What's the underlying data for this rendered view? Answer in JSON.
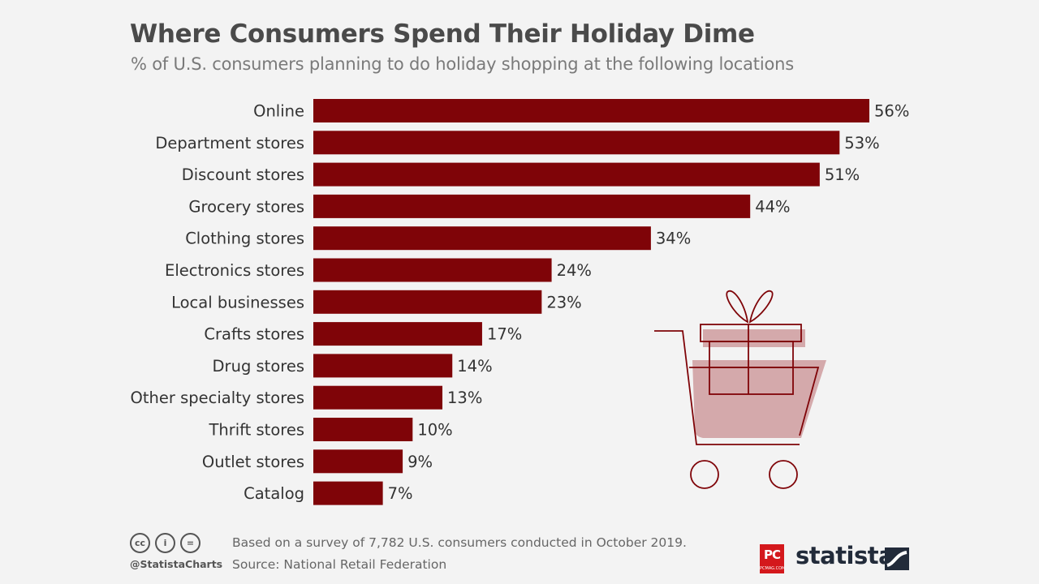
{
  "header": {
    "title": "Where Consumers Spend Their Holiday Dime",
    "subtitle": "% of U.S. consumers planning to do holiday shopping at the following locations"
  },
  "chart_data": {
    "type": "bar",
    "orientation": "horizontal",
    "title": "Where Consumers Spend Their Holiday Dime",
    "subtitle": "% of U.S. consumers planning to do holiday shopping at the following locations",
    "categories": [
      "Online",
      "Department stores",
      "Discount stores",
      "Grocery stores",
      "Clothing stores",
      "Electronics stores",
      "Local businesses",
      "Crafts stores",
      "Drug stores",
      "Other specialty stores",
      "Thrift stores",
      "Outlet stores",
      "Catalog"
    ],
    "values": [
      56,
      53,
      51,
      44,
      34,
      24,
      23,
      17,
      14,
      13,
      10,
      9,
      7
    ],
    "value_labels": [
      "56%",
      "53%",
      "51%",
      "44%",
      "34%",
      "24%",
      "23%",
      "17%",
      "14%",
      "13%",
      "10%",
      "9%",
      "7%"
    ],
    "unit": "%",
    "xlim": [
      0,
      56
    ],
    "grid": false,
    "legend": "none",
    "bar_color": "#7f0408"
  },
  "illustration": {
    "icon": "shopping-cart-with-gift-icon",
    "line_color": "#7f0408",
    "fill_color": "#d4a9ab"
  },
  "footer": {
    "note": "Based on a survey of 7,782 U.S. consumers conducted in October 2019.",
    "source": "Source: National Retail Federation",
    "handle": "@StatistaCharts",
    "cc_icons": [
      "cc",
      "by",
      "nd"
    ],
    "cc_labels": [
      "cc",
      "i",
      "="
    ],
    "pc_logo_text": "PC",
    "pc_logo_subtext": "PCMAG.COM",
    "statista_logo_text": "statista"
  },
  "colors": {
    "background": "#f3f3f3",
    "bar": "#7f0408",
    "title": "#4a4a4a",
    "subtitle": "#7a7a7a",
    "text": "#333333",
    "pc_red": "#d4181c",
    "statista_navy": "#222b3a"
  }
}
